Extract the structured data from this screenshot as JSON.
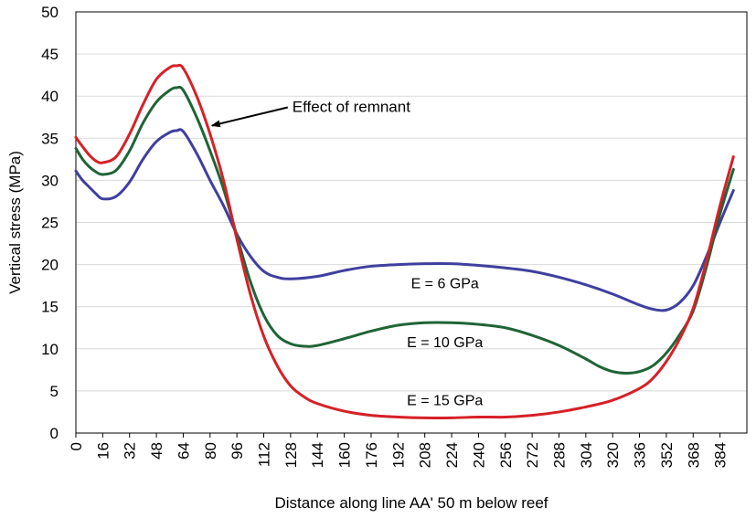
{
  "chart_data": {
    "type": "line",
    "title": "",
    "xlabel": "Distance along line AA' 50 m below reef",
    "ylabel": "Vertical stress (MPa)",
    "xlim": [
      0,
      400
    ],
    "ylim": [
      0,
      50
    ],
    "xticks": [
      0,
      16,
      32,
      48,
      64,
      80,
      96,
      112,
      128,
      144,
      160,
      176,
      192,
      208,
      224,
      240,
      256,
      272,
      288,
      304,
      320,
      336,
      352,
      368,
      384
    ],
    "yticks": [
      0,
      5,
      10,
      15,
      20,
      25,
      30,
      35,
      40,
      45,
      50
    ],
    "grid": "horizontal",
    "legend": "none",
    "annotation": {
      "text": "Effect of remnant",
      "arrow_to": [
        80,
        36.5
      ]
    },
    "series": [
      {
        "name": "E = 6 GPa",
        "color": "#3f3f9f",
        "label_at": [
          220,
          17.2
        ],
        "points": [
          [
            0,
            31.1
          ],
          [
            4,
            30
          ],
          [
            8,
            29.2
          ],
          [
            12,
            28.4
          ],
          [
            16,
            27.8
          ],
          [
            24,
            28.1
          ],
          [
            32,
            29.8
          ],
          [
            40,
            32.5
          ],
          [
            48,
            34.6
          ],
          [
            56,
            35.7
          ],
          [
            60,
            35.9
          ],
          [
            64,
            35.8
          ],
          [
            72,
            33.2
          ],
          [
            80,
            30
          ],
          [
            88,
            27
          ],
          [
            96,
            23.6
          ],
          [
            104,
            21
          ],
          [
            112,
            19.2
          ],
          [
            120,
            18.5
          ],
          [
            128,
            18.3
          ],
          [
            144,
            18.6
          ],
          [
            160,
            19.3
          ],
          [
            176,
            19.8
          ],
          [
            192,
            20
          ],
          [
            208,
            20.1
          ],
          [
            224,
            20.1
          ],
          [
            240,
            19.9
          ],
          [
            256,
            19.6
          ],
          [
            272,
            19.2
          ],
          [
            288,
            18.5
          ],
          [
            304,
            17.6
          ],
          [
            320,
            16.5
          ],
          [
            336,
            15.2
          ],
          [
            344,
            14.7
          ],
          [
            352,
            14.6
          ],
          [
            360,
            15.5
          ],
          [
            368,
            17.5
          ],
          [
            376,
            21
          ],
          [
            384,
            25
          ],
          [
            392,
            28.8
          ]
        ]
      },
      {
        "name": "E = 10 GPa",
        "color": "#1f6437",
        "label_at": [
          220,
          10.2
        ],
        "points": [
          [
            0,
            33.8
          ],
          [
            4,
            32.5
          ],
          [
            8,
            31.6
          ],
          [
            12,
            31
          ],
          [
            16,
            30.7
          ],
          [
            24,
            31.2
          ],
          [
            32,
            33.5
          ],
          [
            40,
            36.8
          ],
          [
            48,
            39.3
          ],
          [
            56,
            40.7
          ],
          [
            60,
            41
          ],
          [
            64,
            40.7
          ],
          [
            72,
            37.5
          ],
          [
            80,
            33.5
          ],
          [
            88,
            29
          ],
          [
            96,
            23.4
          ],
          [
            104,
            18
          ],
          [
            112,
            14
          ],
          [
            120,
            11.6
          ],
          [
            128,
            10.6
          ],
          [
            136,
            10.3
          ],
          [
            144,
            10.4
          ],
          [
            160,
            11.2
          ],
          [
            176,
            12.1
          ],
          [
            192,
            12.8
          ],
          [
            208,
            13.1
          ],
          [
            224,
            13.1
          ],
          [
            240,
            12.9
          ],
          [
            256,
            12.5
          ],
          [
            272,
            11.6
          ],
          [
            288,
            10.4
          ],
          [
            304,
            8.8
          ],
          [
            312,
            7.9
          ],
          [
            320,
            7.3
          ],
          [
            328,
            7.1
          ],
          [
            336,
            7.3
          ],
          [
            344,
            8
          ],
          [
            352,
            9.5
          ],
          [
            360,
            11.7
          ],
          [
            368,
            14.5
          ],
          [
            376,
            19.8
          ],
          [
            384,
            26
          ],
          [
            392,
            31.3
          ]
        ]
      },
      {
        "name": "E = 15 GPa",
        "color": "#d62027",
        "label_at": [
          220,
          3.3
        ],
        "points": [
          [
            0,
            35.1
          ],
          [
            4,
            34
          ],
          [
            8,
            33
          ],
          [
            12,
            32.3
          ],
          [
            16,
            32.1
          ],
          [
            24,
            32.8
          ],
          [
            32,
            35.5
          ],
          [
            40,
            39
          ],
          [
            48,
            42
          ],
          [
            56,
            43.4
          ],
          [
            60,
            43.6
          ],
          [
            64,
            43.3
          ],
          [
            72,
            40
          ],
          [
            80,
            35.5
          ],
          [
            88,
            30
          ],
          [
            96,
            23
          ],
          [
            104,
            16.5
          ],
          [
            112,
            11.5
          ],
          [
            120,
            8
          ],
          [
            128,
            5.6
          ],
          [
            136,
            4.3
          ],
          [
            144,
            3.5
          ],
          [
            160,
            2.6
          ],
          [
            176,
            2.1
          ],
          [
            192,
            1.9
          ],
          [
            208,
            1.8
          ],
          [
            224,
            1.8
          ],
          [
            240,
            1.9
          ],
          [
            256,
            1.9
          ],
          [
            272,
            2.1
          ],
          [
            288,
            2.5
          ],
          [
            304,
            3.1
          ],
          [
            320,
            3.9
          ],
          [
            336,
            5.3
          ],
          [
            344,
            6.5
          ],
          [
            352,
            8.5
          ],
          [
            360,
            11.2
          ],
          [
            368,
            14.8
          ],
          [
            376,
            20.5
          ],
          [
            384,
            27
          ],
          [
            392,
            32.8
          ]
        ]
      }
    ]
  }
}
